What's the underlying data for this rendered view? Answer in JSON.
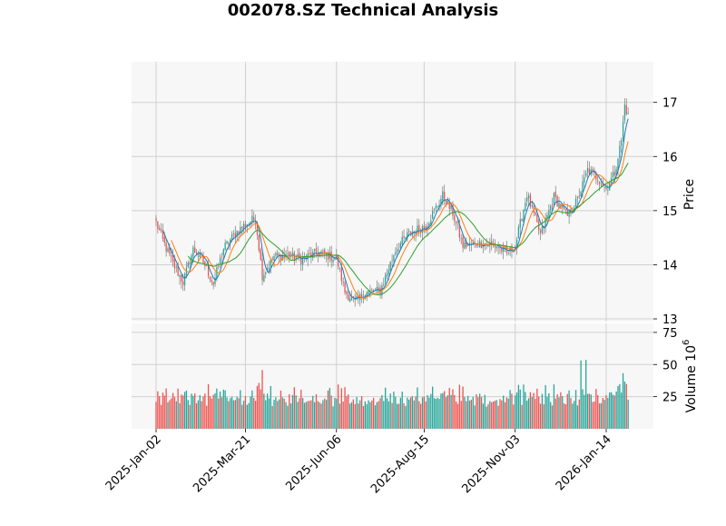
{
  "chart_data": {
    "type": "candlestick",
    "title": "002078.SZ Technical Analysis",
    "price_panel": {
      "ylabel": "Price",
      "ylim": [
        12.95,
        17.75
      ],
      "yticks": [
        13,
        14,
        15,
        16,
        17
      ],
      "grid": true
    },
    "volume_panel": {
      "ylabel": "Volume  10",
      "ylabel_exponent": "6",
      "ylim": [
        0,
        82
      ],
      "yticks": [
        25,
        50,
        75
      ],
      "grid": true
    },
    "x_tick_labels": [
      "2025-Jan-02",
      "2025-Mar-21",
      "2025-Jun-06",
      "2025-Aug-15",
      "2025-Nov-03",
      "2026-Jan-14"
    ],
    "x_tick_index": [
      0,
      53,
      107,
      159,
      213,
      267
    ],
    "n_sessions": 281,
    "up_color": "#26a69a",
    "down_color": "#ef5350",
    "ma_colors": [
      "#1f77b4",
      "#ff7f0e",
      "#2ca02c"
    ],
    "price_path": [
      [
        0,
        14.78
      ],
      [
        4,
        14.45
      ],
      [
        10,
        14.02
      ],
      [
        16,
        13.68
      ],
      [
        22,
        14.28
      ],
      [
        27,
        14.12
      ],
      [
        34,
        13.65
      ],
      [
        40,
        14.3
      ],
      [
        47,
        14.58
      ],
      [
        53,
        14.75
      ],
      [
        59,
        14.86
      ],
      [
        63,
        13.8
      ],
      [
        70,
        14.15
      ],
      [
        78,
        14.18
      ],
      [
        86,
        14.1
      ],
      [
        96,
        14.22
      ],
      [
        107,
        14.12
      ],
      [
        112,
        13.5
      ],
      [
        118,
        13.3
      ],
      [
        124,
        13.48
      ],
      [
        133,
        13.52
      ],
      [
        142,
        14.28
      ],
      [
        150,
        14.58
      ],
      [
        160,
        14.72
      ],
      [
        170,
        15.28
      ],
      [
        176,
        14.95
      ],
      [
        182,
        14.35
      ],
      [
        194,
        14.4
      ],
      [
        202,
        14.35
      ],
      [
        208,
        14.2
      ],
      [
        213,
        14.35
      ],
      [
        220,
        15.3
      ],
      [
        228,
        14.55
      ],
      [
        236,
        15.25
      ],
      [
        244,
        14.9
      ],
      [
        250,
        15.2
      ],
      [
        256,
        15.75
      ],
      [
        262,
        15.6
      ],
      [
        267,
        15.4
      ],
      [
        272,
        15.7
      ],
      [
        276,
        16.3
      ],
      [
        278,
        16.95
      ],
      [
        280,
        16.75
      ]
    ],
    "volume_baseline": 16
  }
}
